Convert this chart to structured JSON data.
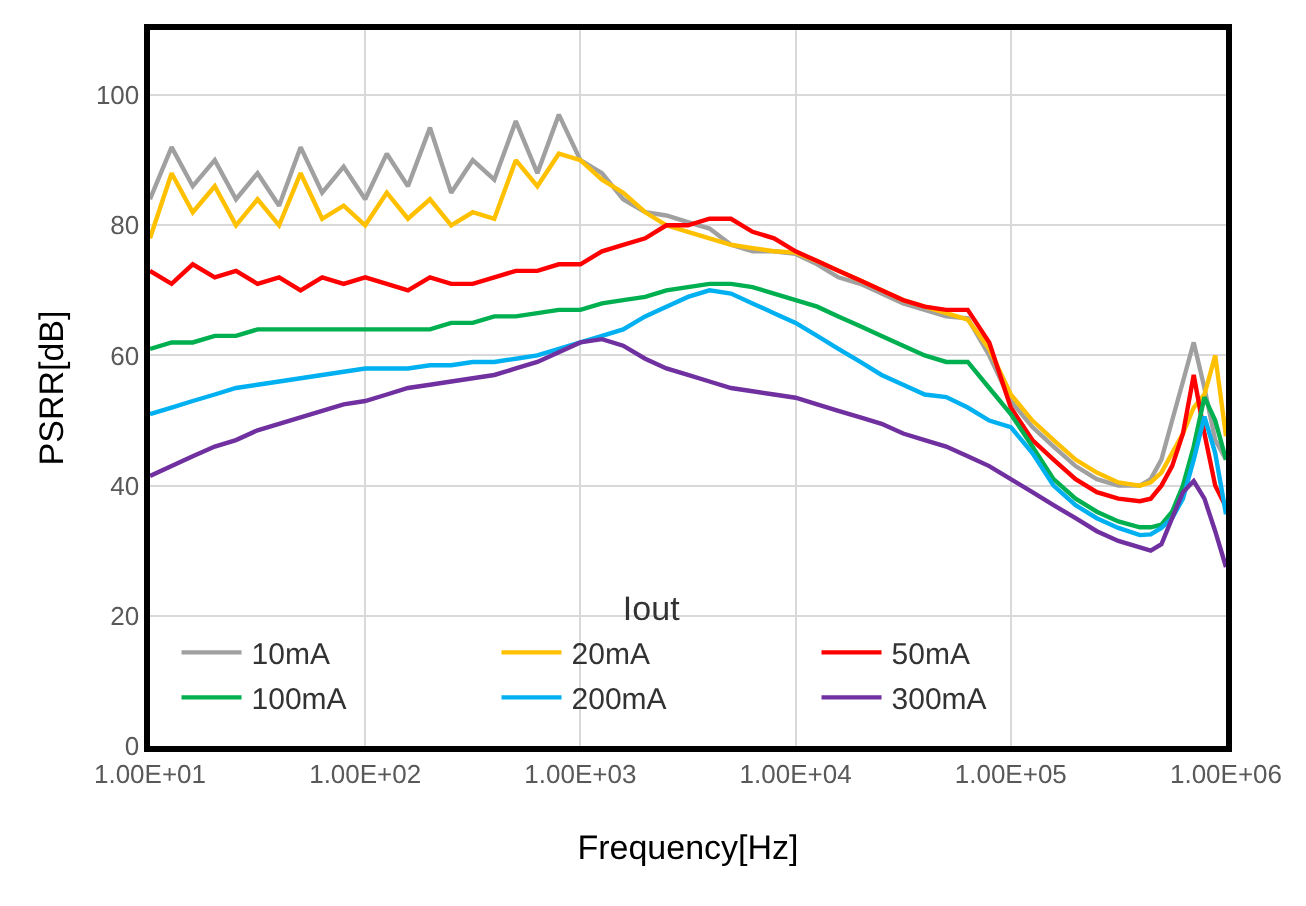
{
  "chart_data": {
    "type": "line",
    "xlabel": "Frequency[Hz]",
    "ylabel": "PSRR[dB]",
    "legend_title": "Iout",
    "legend": "bottom left",
    "grid": true,
    "log": "x",
    "line_style": "solid",
    "marker": "none",
    "xlim": [
      10,
      1000000
    ],
    "ylim": [
      0,
      110
    ],
    "xticks": [
      {
        "value": 10,
        "label": "1.00E+01"
      },
      {
        "value": 100,
        "label": "1.00E+02"
      },
      {
        "value": 1000,
        "label": "1.00E+03"
      },
      {
        "value": 10000,
        "label": "1.00E+04"
      },
      {
        "value": 100000,
        "label": "1.00E+05"
      },
      {
        "value": 1000000,
        "label": "1.00E+06"
      }
    ],
    "yticks": [
      0,
      20,
      40,
      60,
      80,
      100
    ],
    "x": [
      10,
      12.6,
      15.8,
      20,
      25.1,
      31.6,
      39.8,
      50.1,
      63.1,
      79.4,
      100,
      126,
      158,
      200,
      251,
      316,
      398,
      501,
      631,
      794,
      1000,
      1260,
      1580,
      2000,
      2510,
      3160,
      3980,
      5010,
      6310,
      7940,
      10000,
      12600,
      15800,
      20000,
      25100,
      31600,
      39800,
      50100,
      63100,
      79400,
      100000,
      126000,
      158000,
      200000,
      251000,
      316000,
      398000,
      447000,
      501000,
      562000,
      631000,
      708000,
      794000,
      891000,
      1000000
    ],
    "series": [
      {
        "name": "10mA",
        "color": "#a0a0a0",
        "values": [
          84,
          92,
          86,
          90,
          84,
          88,
          83,
          92,
          85,
          89,
          84,
          91,
          86,
          95,
          85,
          90,
          87,
          96,
          88,
          97,
          90,
          88,
          84,
          82,
          81.5,
          80.5,
          79.5,
          77,
          76,
          76,
          75.6,
          74,
          72,
          71,
          69.5,
          68,
          67,
          66,
          65.7,
          60,
          53,
          49,
          46,
          43,
          41,
          40,
          40,
          41,
          44,
          50,
          56,
          62,
          55,
          47,
          44
        ]
      },
      {
        "name": "20mA",
        "color": "#ffc000",
        "values": [
          78,
          88,
          82,
          86,
          80,
          84,
          80,
          88,
          81,
          83,
          80,
          85,
          81,
          84,
          80,
          82,
          81,
          90,
          86,
          91,
          90,
          87,
          85,
          82,
          80,
          79,
          78,
          77,
          76.5,
          76,
          75.8,
          74.5,
          73,
          71.5,
          70,
          68.5,
          67.5,
          66.5,
          65.5,
          61,
          54,
          50,
          47,
          44,
          42,
          40.5,
          40,
          40.5,
          42,
          45,
          48,
          52,
          54,
          60,
          47.6
        ]
      },
      {
        "name": "50mA",
        "color": "#ff0000",
        "values": [
          73,
          71,
          74,
          72,
          73,
          71,
          72,
          70,
          72,
          71,
          72,
          71,
          70,
          72,
          71,
          71,
          72,
          73,
          73,
          74,
          74,
          76,
          77,
          78,
          80,
          80,
          81,
          81,
          79,
          78,
          76,
          74.5,
          73,
          71.5,
          70,
          68.5,
          67.5,
          67,
          67,
          62,
          52,
          47,
          44,
          41,
          39,
          38,
          37.6,
          38,
          40,
          43,
          48,
          57,
          48,
          40,
          36.7
        ]
      },
      {
        "name": "100mA",
        "color": "#00b050",
        "values": [
          61,
          62,
          62,
          63,
          63,
          64,
          64,
          64,
          64,
          64,
          64,
          64,
          64,
          64,
          65,
          65,
          66,
          66,
          66.5,
          67,
          67,
          68,
          68.5,
          69,
          70,
          70.5,
          71,
          71,
          70.5,
          69.5,
          68.5,
          67.5,
          66,
          64.5,
          63,
          61.5,
          60,
          59,
          59,
          55,
          51,
          46,
          41,
          38,
          36,
          34.5,
          33.6,
          33.6,
          34,
          36,
          40,
          46,
          53.6,
          50,
          44
        ]
      },
      {
        "name": "200mA",
        "color": "#00b0f0",
        "values": [
          51,
          52,
          53,
          54,
          55,
          55.5,
          56,
          56.5,
          57,
          57.5,
          58,
          58,
          58,
          58.5,
          58.5,
          59,
          59,
          59.5,
          60,
          61,
          62,
          63,
          64,
          66,
          67.5,
          69,
          70,
          69.5,
          68,
          66.5,
          65,
          63,
          61,
          59,
          57,
          55.5,
          54,
          53.6,
          52,
          50,
          49,
          45,
          40,
          37,
          35,
          33.5,
          32.4,
          32.5,
          33.5,
          35,
          38,
          44,
          50.6,
          45,
          35.6
        ]
      },
      {
        "name": "300mA",
        "color": "#7030a0",
        "values": [
          41.5,
          43,
          44.5,
          46,
          47,
          48.5,
          49.5,
          50.5,
          51.5,
          52.5,
          53,
          54,
          55,
          55.5,
          56,
          56.5,
          57,
          58,
          59,
          60.5,
          62,
          62.5,
          61.5,
          59.5,
          58,
          57,
          56,
          55,
          54.5,
          54,
          53.5,
          52.5,
          51.5,
          50.5,
          49.5,
          48,
          47,
          46,
          44.5,
          43,
          41,
          39,
          37,
          35,
          33,
          31.5,
          30.5,
          30,
          31,
          35,
          39,
          40.7,
          38,
          33,
          27.5
        ]
      }
    ]
  }
}
